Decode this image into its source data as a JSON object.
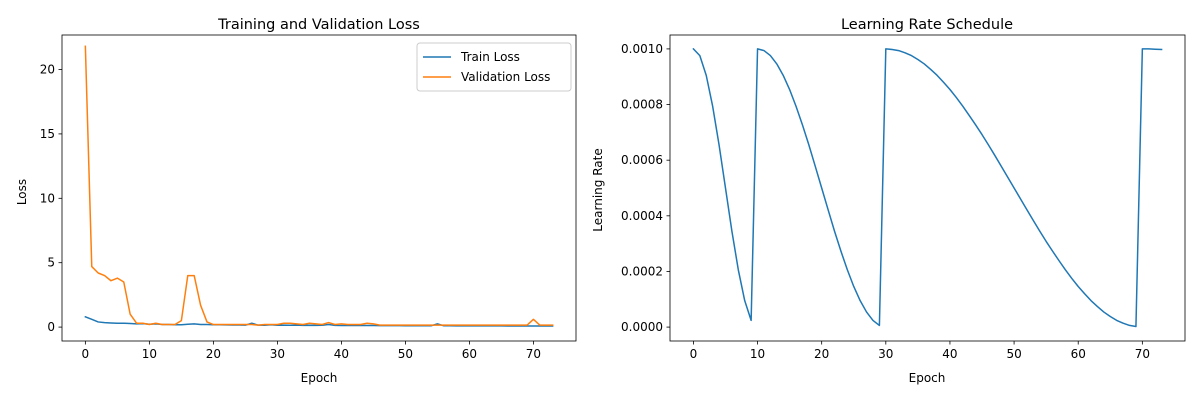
{
  "figure": {
    "background": "#ffffff",
    "series_colors": [
      "#1f77b4",
      "#ff7f0e"
    ]
  },
  "chart_data": [
    {
      "type": "line",
      "title": "Training and Validation Loss",
      "xlabel": "Epoch",
      "ylabel": "Loss",
      "xlim": [
        -3.65,
        76.65
      ],
      "ylim": [
        -1.08,
        22.68
      ],
      "xticks": [
        0,
        10,
        20,
        30,
        40,
        50,
        60,
        70
      ],
      "yticks": [
        0,
        5,
        10,
        15,
        20
      ],
      "grid": false,
      "legend": "top-right",
      "x": [
        0,
        1,
        2,
        3,
        4,
        5,
        6,
        7,
        8,
        9,
        10,
        11,
        12,
        13,
        14,
        15,
        16,
        17,
        18,
        19,
        20,
        21,
        22,
        23,
        24,
        25,
        26,
        27,
        28,
        29,
        30,
        31,
        32,
        33,
        34,
        35,
        36,
        37,
        38,
        39,
        40,
        41,
        42,
        43,
        44,
        45,
        46,
        47,
        48,
        49,
        50,
        51,
        52,
        53,
        54,
        55,
        56,
        57,
        58,
        59,
        60,
        61,
        62,
        63,
        64,
        65,
        66,
        67,
        68,
        69,
        70,
        71,
        72,
        73
      ],
      "series": [
        {
          "name": "Train Loss",
          "color": "#1f77b4",
          "values": [
            0.8,
            0.6,
            0.4,
            0.35,
            0.32,
            0.3,
            0.3,
            0.28,
            0.25,
            0.27,
            0.22,
            0.25,
            0.2,
            0.2,
            0.18,
            0.18,
            0.22,
            0.25,
            0.2,
            0.2,
            0.18,
            0.18,
            0.17,
            0.16,
            0.16,
            0.15,
            0.3,
            0.15,
            0.14,
            0.18,
            0.14,
            0.15,
            0.14,
            0.15,
            0.13,
            0.14,
            0.13,
            0.14,
            0.2,
            0.13,
            0.12,
            0.13,
            0.12,
            0.12,
            0.12,
            0.12,
            0.11,
            0.11,
            0.11,
            0.11,
            0.1,
            0.1,
            0.1,
            0.1,
            0.1,
            0.25,
            0.1,
            0.1,
            0.09,
            0.09,
            0.09,
            0.09,
            0.09,
            0.09,
            0.09,
            0.09,
            0.08,
            0.08,
            0.08,
            0.08,
            0.08,
            0.08,
            0.08,
            0.08
          ]
        },
        {
          "name": "Validation Loss",
          "color": "#ff7f0e",
          "values": [
            21.8,
            4.7,
            4.2,
            4.0,
            3.6,
            3.8,
            3.5,
            1.0,
            0.3,
            0.3,
            0.2,
            0.3,
            0.2,
            0.2,
            0.2,
            0.5,
            4.0,
            4.0,
            1.7,
            0.4,
            0.2,
            0.2,
            0.2,
            0.2,
            0.2,
            0.2,
            0.2,
            0.15,
            0.2,
            0.2,
            0.2,
            0.3,
            0.3,
            0.25,
            0.2,
            0.3,
            0.25,
            0.2,
            0.35,
            0.2,
            0.25,
            0.2,
            0.2,
            0.2,
            0.3,
            0.25,
            0.15,
            0.15,
            0.15,
            0.15,
            0.15,
            0.15,
            0.15,
            0.15,
            0.15,
            0.15,
            0.15,
            0.15,
            0.15,
            0.15,
            0.15,
            0.15,
            0.15,
            0.15,
            0.15,
            0.15,
            0.15,
            0.15,
            0.15,
            0.15,
            0.6,
            0.15,
            0.15,
            0.15
          ]
        }
      ]
    },
    {
      "type": "line",
      "title": "Learning Rate Schedule",
      "xlabel": "Epoch",
      "ylabel": "Learning Rate",
      "xlim": [
        -3.65,
        76.65
      ],
      "ylim": [
        -5e-05,
        0.00105
      ],
      "xticks": [
        0,
        10,
        20,
        30,
        40,
        50,
        60,
        70
      ],
      "yticks": [
        0,
        0.0002,
        0.0004,
        0.0006,
        0.0008,
        0.001
      ],
      "ytick_labels": [
        "0.0000",
        "0.0002",
        "0.0004",
        "0.0006",
        "0.0008",
        "0.0010"
      ],
      "grid": false,
      "x": [
        0,
        1,
        2,
        3,
        4,
        5,
        6,
        7,
        8,
        9,
        10,
        11,
        12,
        13,
        14,
        15,
        16,
        17,
        18,
        19,
        20,
        21,
        22,
        23,
        24,
        25,
        26,
        27,
        28,
        29,
        30,
        31,
        32,
        33,
        34,
        35,
        36,
        37,
        38,
        39,
        40,
        41,
        42,
        43,
        44,
        45,
        46,
        47,
        48,
        49,
        50,
        51,
        52,
        53,
        54,
        55,
        56,
        57,
        58,
        59,
        60,
        61,
        62,
        63,
        64,
        65,
        66,
        67,
        68,
        69,
        70,
        71,
        72,
        73
      ],
      "series": [
        {
          "color": "#1f77b4",
          "values": [
            0.001,
            0.000976,
            0.000905,
            0.000794,
            0.000655,
            0.0005,
            0.000345,
            0.000206,
            9.5e-05,
            2.4e-05,
            0.001,
            0.000994,
            0.000976,
            0.000946,
            0.000905,
            0.000854,
            0.000794,
            0.000727,
            0.000655,
            0.000578,
            0.0005,
            0.000422,
            0.000345,
            0.000273,
            0.000206,
            0.000146,
            9.5e-05,
            5.4e-05,
            2.4e-05,
            6e-06,
            0.001,
            0.000998,
            0.000994,
            0.000986,
            0.000976,
            0.000962,
            0.000946,
            0.000926,
            0.000905,
            0.00088,
            0.000854,
            0.000825,
            0.000794,
            0.000761,
            0.000727,
            0.000692,
            0.000655,
            0.000617,
            0.000578,
            0.000539,
            0.0005,
            0.000461,
            0.000422,
            0.000383,
            0.000345,
            0.000308,
            0.000273,
            0.000239,
            0.000206,
            0.000175,
            0.000146,
            0.00012,
            9.5e-05,
            7.4e-05,
            5.4e-05,
            3.8e-05,
            2.4e-05,
            1.4e-05,
            6e-06,
            2e-06,
            0.001,
            0.001,
            0.000999,
            0.000998
          ]
        }
      ]
    }
  ]
}
